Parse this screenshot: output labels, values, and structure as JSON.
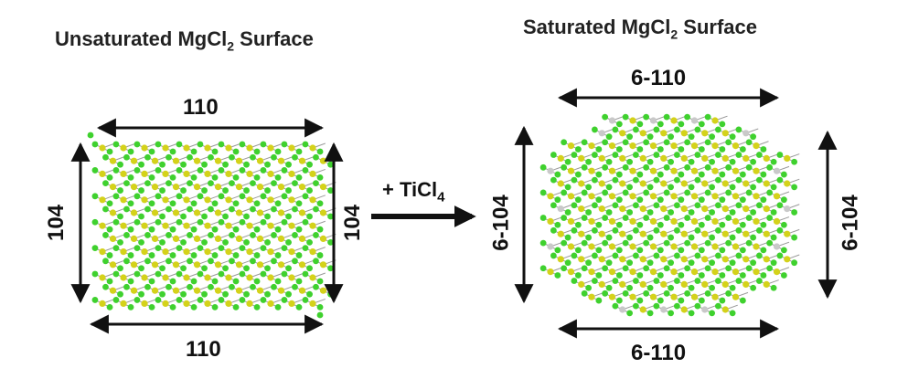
{
  "left_panel": {
    "title_main": "Unsaturated MgCl",
    "title_sub": "2",
    "title_tail": " Surface",
    "top_label": "110",
    "bottom_label": "110",
    "left_label": "104",
    "right_label": "104"
  },
  "reaction": {
    "label_main": "+ TiCl",
    "label_sub": "4"
  },
  "right_panel": {
    "title_main": "Saturated MgCl",
    "title_sub": "2",
    "title_tail": " Surface",
    "top_label": "6-110",
    "bottom_label": "6-110",
    "left_label": "6-104",
    "right_label": "6-104"
  },
  "colors": {
    "chlorine": "#3fd12e",
    "magnesium": "#d4d21a",
    "titanium": "#c9c9c9",
    "bond": "#9a9a9a",
    "arrow": "#111111"
  }
}
